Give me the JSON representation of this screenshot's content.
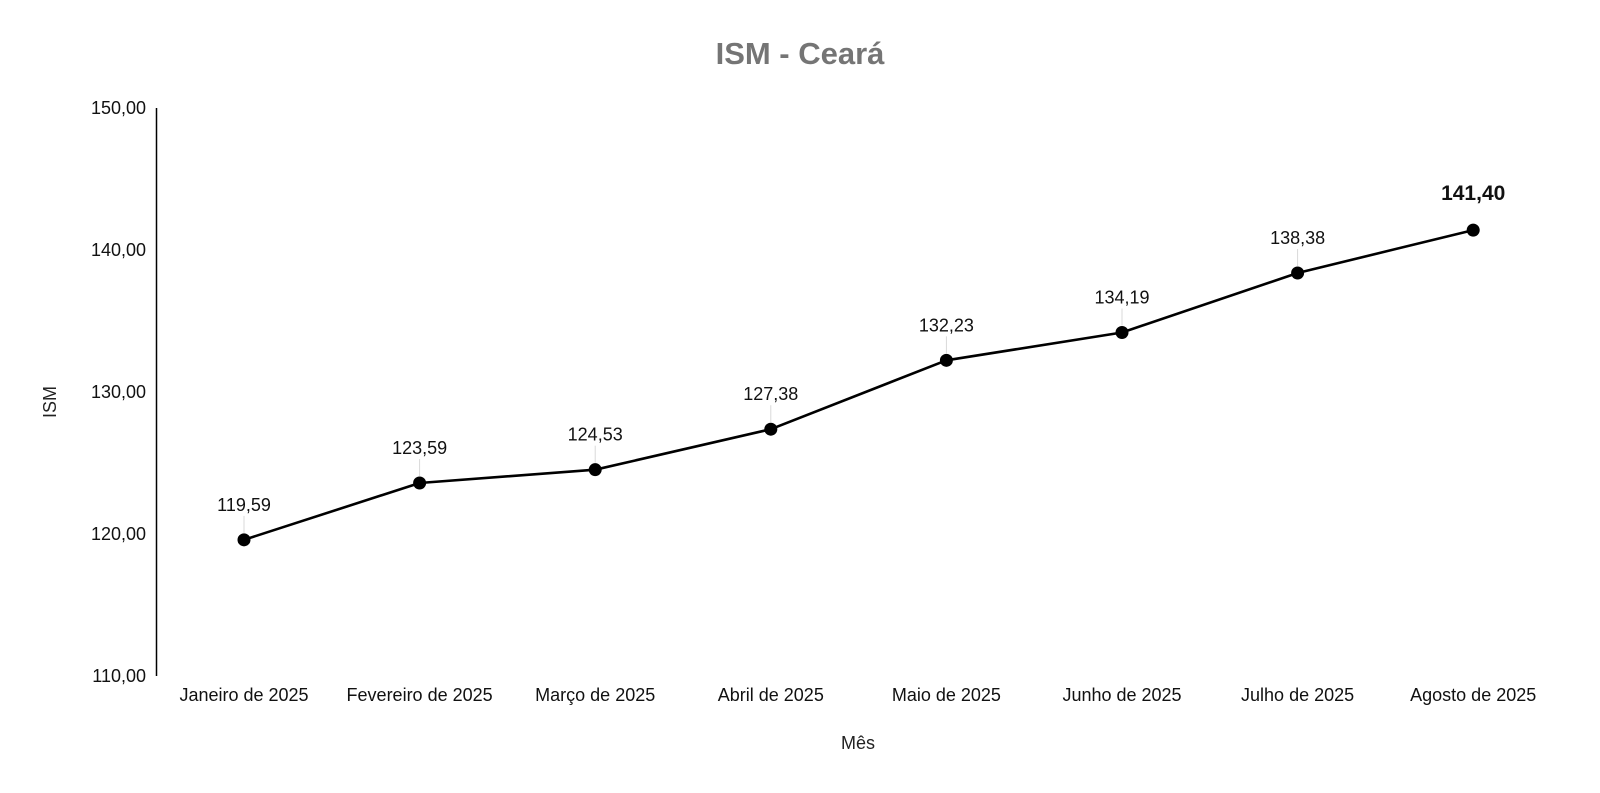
{
  "chart_data": {
    "type": "line",
    "title": "ISM - Ceará",
    "xlabel": "Mês",
    "ylabel": "ISM",
    "categories": [
      "Janeiro de 2025",
      "Fevereiro de 2025",
      "Março de 2025",
      "Abril de 2025",
      "Maio de 2025",
      "Junho de 2025",
      "Julho de 2025",
      "Agosto de 2025"
    ],
    "values": [
      119.59,
      123.59,
      124.53,
      127.38,
      132.23,
      134.19,
      138.38,
      141.4
    ],
    "value_labels": [
      "119,59",
      "123,59",
      "124,53",
      "127,38",
      "132,23",
      "134,19",
      "138,38",
      "141,40"
    ],
    "ylim": [
      110,
      150
    ],
    "yticks": [
      110,
      120,
      130,
      140,
      150
    ],
    "ytick_labels": [
      "110,00",
      "120,00",
      "130,00",
      "140,00",
      "150,00"
    ],
    "grid": false,
    "legend": "none",
    "line_color": "#000000",
    "marker_color": "#000000",
    "title_color": "#757575"
  }
}
